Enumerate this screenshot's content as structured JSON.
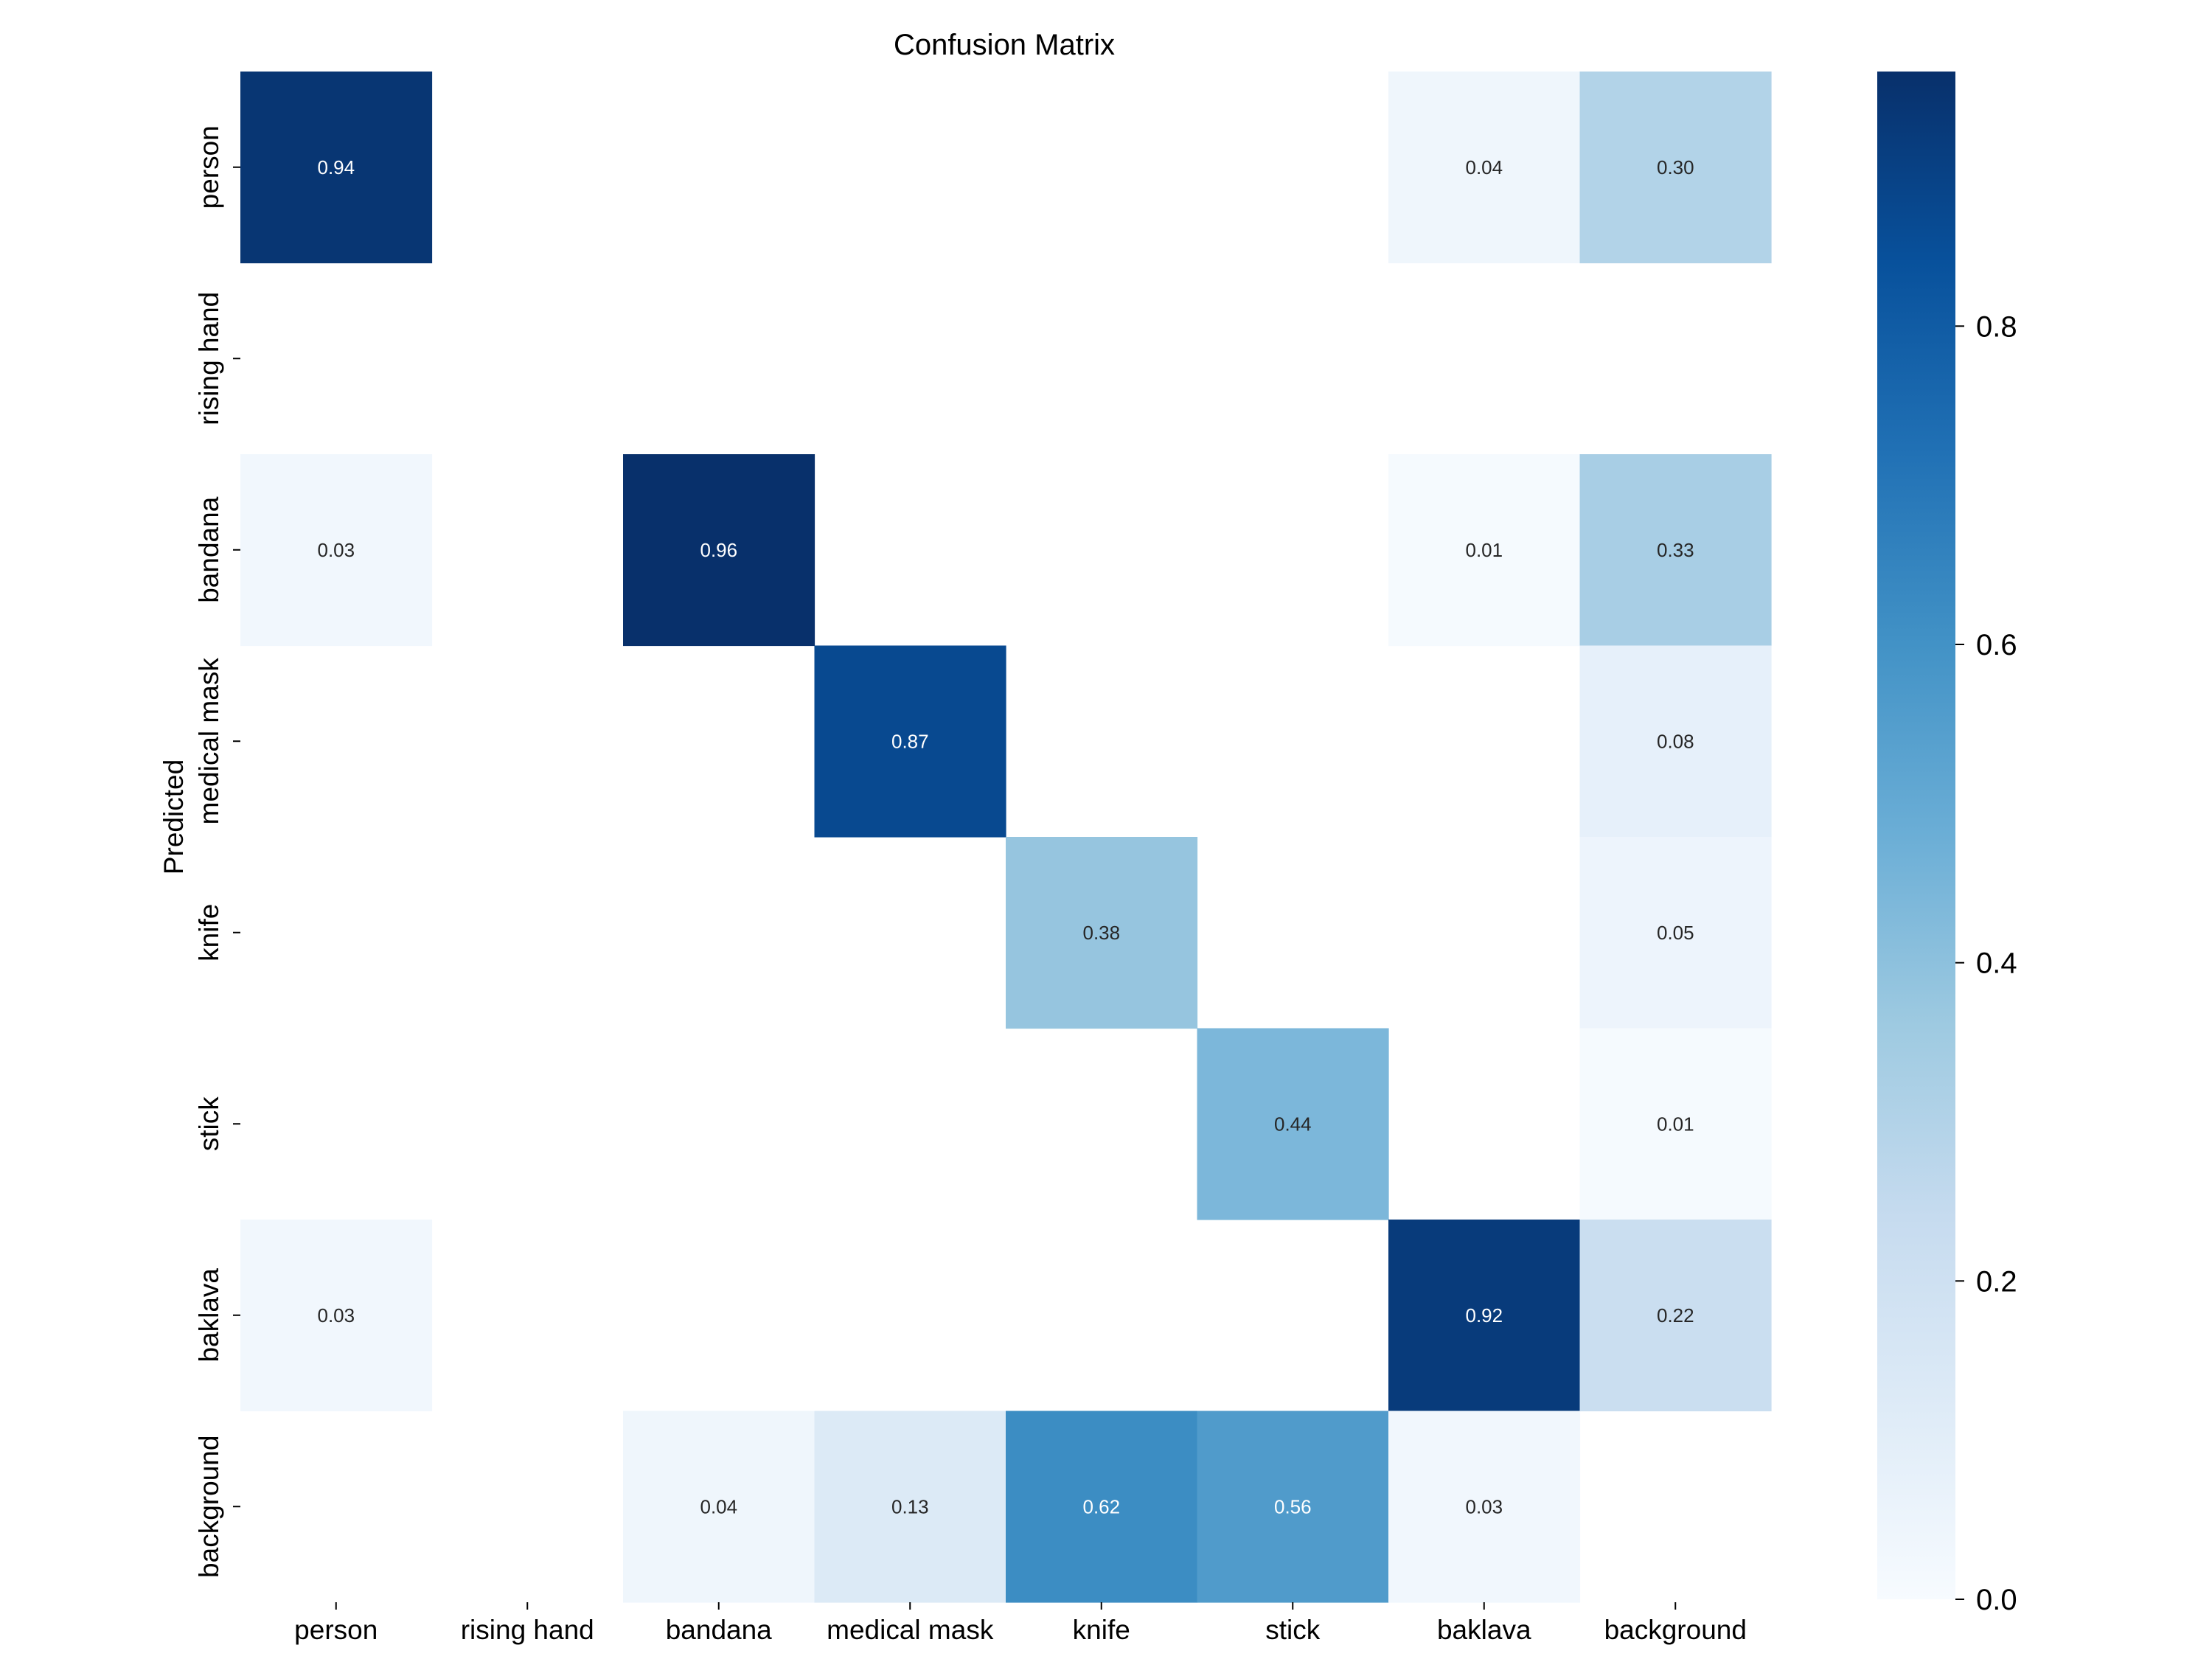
{
  "chart_data": {
    "type": "heatmap",
    "title": "Confusion Matrix",
    "xlabel": "",
    "ylabel": "Predicted",
    "x_categories": [
      "person",
      "rising hand",
      "bandana",
      "medical mask",
      "knife",
      "stick",
      "baklava",
      "background"
    ],
    "y_categories": [
      "person",
      "rising hand",
      "bandana",
      "medical mask",
      "knife",
      "stick",
      "baklava",
      "background"
    ],
    "values": [
      [
        0.94,
        null,
        null,
        null,
        null,
        null,
        0.04,
        0.3
      ],
      [
        null,
        null,
        null,
        null,
        null,
        null,
        null,
        null
      ],
      [
        0.03,
        null,
        0.96,
        null,
        null,
        null,
        0.01,
        0.33
      ],
      [
        null,
        null,
        null,
        0.87,
        null,
        null,
        null,
        0.08
      ],
      [
        null,
        null,
        null,
        null,
        0.38,
        null,
        null,
        0.05
      ],
      [
        null,
        null,
        null,
        null,
        null,
        0.44,
        null,
        0.01
      ],
      [
        0.03,
        null,
        null,
        null,
        null,
        null,
        0.92,
        0.22
      ],
      [
        null,
        null,
        0.04,
        0.13,
        0.62,
        0.56,
        0.03,
        null
      ]
    ],
    "value_labels": [
      [
        "0.94",
        null,
        null,
        null,
        null,
        null,
        "0.04",
        "0.30"
      ],
      [
        null,
        null,
        null,
        null,
        null,
        null,
        null,
        null
      ],
      [
        "0.03",
        null,
        "0.96",
        null,
        null,
        null,
        "0.01",
        "0.33"
      ],
      [
        null,
        null,
        null,
        "0.87",
        null,
        null,
        null,
        "0.08"
      ],
      [
        null,
        null,
        null,
        null,
        "0.38",
        null,
        null,
        "0.05"
      ],
      [
        null,
        null,
        null,
        null,
        null,
        "0.44",
        null,
        "0.01"
      ],
      [
        "0.03",
        null,
        null,
        null,
        null,
        null,
        "0.92",
        "0.22"
      ],
      [
        null,
        null,
        "0.04",
        "0.13",
        "0.62",
        "0.56",
        "0.03",
        null
      ]
    ],
    "colormap": "Blues",
    "colorbar": {
      "vmin": 0.0,
      "vmax": 0.96,
      "ticks": [
        0.0,
        0.2,
        0.4,
        0.6,
        0.8
      ],
      "tick_labels": [
        "0.0",
        "0.2",
        "0.4",
        "0.6",
        "0.8"
      ]
    }
  }
}
